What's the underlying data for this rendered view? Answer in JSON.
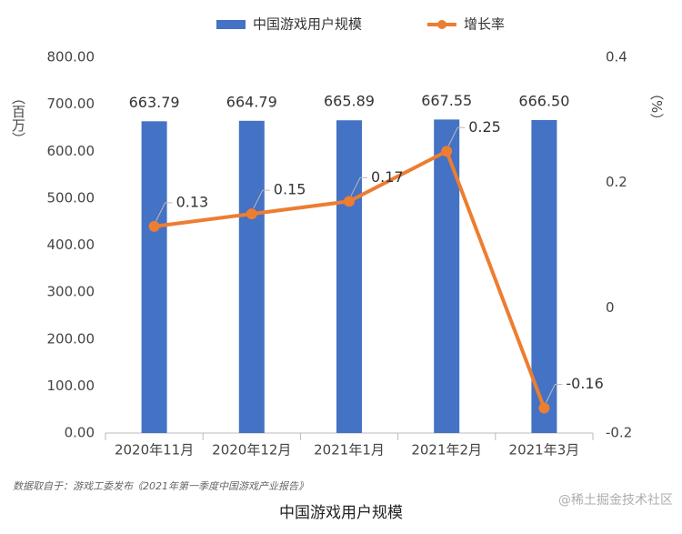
{
  "chart_data": {
    "type": "bar",
    "categories": [
      "2020年11月",
      "2020年12月",
      "2021年1月",
      "2021年2月",
      "2021年3月"
    ],
    "series": [
      {
        "name": "中国游戏用户规模",
        "type": "bar",
        "color": "#4472c4",
        "values": [
          663.79,
          664.79,
          665.89,
          667.55,
          666.5
        ],
        "value_labels": [
          "663.79",
          "664.79",
          "665.89",
          "667.55",
          "666.50"
        ]
      },
      {
        "name": "增长率",
        "type": "line",
        "axis": "y2",
        "color": "#ed7d31",
        "values": [
          0.13,
          0.15,
          0.17,
          0.25,
          -0.16
        ]
      }
    ],
    "ylim": [
      0,
      800
    ],
    "yticks": [
      {
        "value": 0,
        "label": "0.00"
      },
      {
        "value": 100,
        "label": "100.00"
      },
      {
        "value": 200,
        "label": "200.00"
      },
      {
        "value": 300,
        "label": "300.00"
      },
      {
        "value": 400,
        "label": "400.00"
      },
      {
        "value": 500,
        "label": "500.00"
      },
      {
        "value": 600,
        "label": "600.00"
      },
      {
        "value": 700,
        "label": "700.00"
      },
      {
        "value": 800,
        "label": "800.00"
      }
    ],
    "y2lim": [
      -0.2,
      0.4
    ],
    "y2ticks": [
      -0.2,
      0,
      0.2,
      0.4
    ],
    "ylabel": "（百万）",
    "y2label": "（%）",
    "legend": "top",
    "source": "数据取自于：游戏工委发布《2021年第一季度中国游戏产业报告》",
    "caption": "中国游戏用户规模",
    "watermark": "@稀土掘金技术社区"
  }
}
